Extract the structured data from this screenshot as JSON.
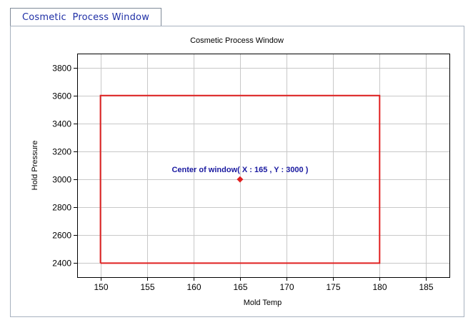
{
  "tab": {
    "label": "Cosmetic  Process Window"
  },
  "chart_data": {
    "type": "line",
    "title": "Cosmetic Process Window",
    "xlabel": "Mold Temp",
    "ylabel": "Hold Pressure",
    "xlim": [
      147.5,
      187.5
    ],
    "ylim": [
      2300,
      3900
    ],
    "x_ticks": [
      150,
      155,
      160,
      165,
      170,
      175,
      180,
      185
    ],
    "y_ticks": [
      2400,
      2600,
      2800,
      3000,
      3200,
      3400,
      3600,
      3800
    ],
    "grid": true,
    "series": [
      {
        "color": "#e02020",
        "x": [
          150,
          180,
          180,
          150,
          150
        ],
        "y": [
          2400,
          2400,
          3600,
          3600,
          2400
        ]
      }
    ],
    "points": [
      {
        "x": 165,
        "y": 3000,
        "color": "#e02020",
        "marker": "diamond"
      }
    ],
    "annotations": [
      {
        "text": "Center of window( X : 165 , Y : 3000 )",
        "x": 165,
        "y": 3000,
        "color": "#1a1aa0"
      }
    ]
  }
}
